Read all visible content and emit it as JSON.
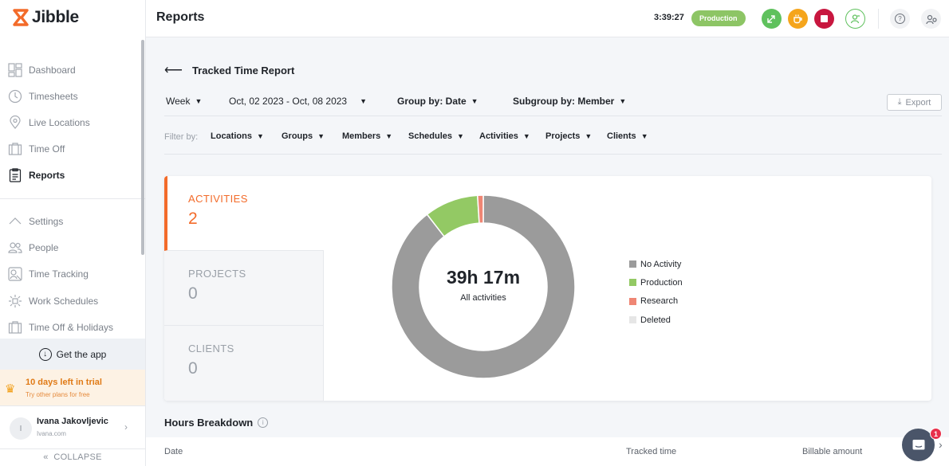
{
  "app": {
    "name": "Jibble"
  },
  "sidebar": {
    "primary": [
      {
        "label": "Dashboard",
        "icon": "dashboard-icon"
      },
      {
        "label": "Timesheets",
        "icon": "clock-icon"
      },
      {
        "label": "Live Locations",
        "icon": "location-pin-icon"
      },
      {
        "label": "Time Off",
        "icon": "suitcase-icon"
      },
      {
        "label": "Reports",
        "icon": "report-icon",
        "active": true
      }
    ],
    "secondary": [
      {
        "label": "Settings",
        "icon": "chevron-up-icon"
      },
      {
        "label": "People",
        "icon": "people-icon"
      },
      {
        "label": "Time Tracking",
        "icon": "time-tracking-icon"
      },
      {
        "label": "Work Schedules",
        "icon": "schedule-icon"
      },
      {
        "label": "Time Off & Holidays",
        "icon": "suitcase-icon"
      }
    ],
    "get_app": "Get the app",
    "trial": {
      "title": "10 days left in trial",
      "subtitle": "Try other plans for free"
    },
    "user": {
      "initial": "I",
      "name": "Ivana Jakovljevic",
      "org": "Ivana.com"
    },
    "collapse": "COLLAPSE"
  },
  "topbar": {
    "title": "Reports",
    "clock": "3:39:27",
    "activity_badge": "Production"
  },
  "report": {
    "title": "Tracked Time Report",
    "period": "Week",
    "date_range": "Oct, 02 2023 - Oct, 08 2023",
    "group_by": "Group by: Date",
    "subgroup_by": "Subgroup by: Member",
    "export": "Export",
    "filter_label": "Filter by:",
    "filters": [
      "Locations",
      "Groups",
      "Members",
      "Schedules",
      "Activities",
      "Projects",
      "Clients"
    ]
  },
  "stats": [
    {
      "label": "ACTIVITIES",
      "value": "2",
      "active": true
    },
    {
      "label": "PROJECTS",
      "value": "0"
    },
    {
      "label": "CLIENTS",
      "value": "0"
    }
  ],
  "chart_data": {
    "type": "pie",
    "donut": true,
    "center_text": "39h 17m",
    "center_subtext": "All activities",
    "legend_position": "right",
    "series": [
      {
        "name": "No Activity",
        "share": 0.895,
        "color": "#9b9b9b"
      },
      {
        "name": "Production",
        "share": 0.095,
        "color": "#93c964"
      },
      {
        "name": "Research",
        "share": 0.01,
        "color": "#ef8674"
      },
      {
        "name": "Deleted",
        "share": 0.0,
        "color": "#e6e6e6"
      }
    ]
  },
  "breakdown": {
    "title": "Hours Breakdown",
    "columns": [
      "Date",
      "Tracked time",
      "Billable amount"
    ]
  },
  "chat": {
    "unread": "1"
  }
}
